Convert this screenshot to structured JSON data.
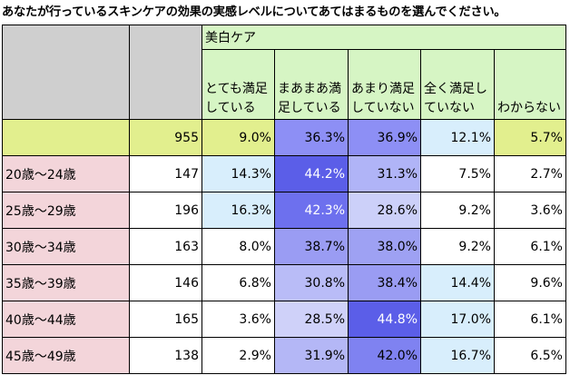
{
  "title": "あなたが行っているスキンケアの効果の実感レベルについてあてはまるものを選んでください。",
  "group_header": "美白ケア",
  "columns": [
    "とても満足している",
    "まあまあ満足している",
    "あまり満足していない",
    "全く満足していない",
    "わからない"
  ],
  "total": {
    "n": "955",
    "values": [
      "9.0%",
      "36.3%",
      "36.9%",
      "12.1%",
      "5.7%"
    ]
  },
  "rows": [
    {
      "label": "20歳～24歳",
      "n": "147",
      "values": [
        "14.3%",
        "44.2%",
        "31.3%",
        "7.5%",
        "2.7%"
      ]
    },
    {
      "label": "25歳～29歳",
      "n": "196",
      "values": [
        "16.3%",
        "42.3%",
        "28.6%",
        "9.2%",
        "3.6%"
      ]
    },
    {
      "label": "30歳～34歳",
      "n": "163",
      "values": [
        "8.0%",
        "38.7%",
        "38.0%",
        "9.2%",
        "6.1%"
      ]
    },
    {
      "label": "35歳～39歳",
      "n": "146",
      "values": [
        "6.8%",
        "30.8%",
        "38.4%",
        "14.4%",
        "9.6%"
      ]
    },
    {
      "label": "40歳～44歳",
      "n": "165",
      "values": [
        "3.6%",
        "28.5%",
        "44.8%",
        "17.0%",
        "6.1%"
      ]
    },
    {
      "label": "45歳～49歳",
      "n": "138",
      "values": [
        "2.9%",
        "31.9%",
        "42.0%",
        "16.7%",
        "6.5%"
      ]
    }
  ],
  "cell_colors": {
    "total": [
      "#e2ef8e",
      "#8d8ff5",
      "#8d8ff5",
      "#d8eefc",
      "#e2ef8e"
    ],
    "rows": [
      [
        "#d8eefc",
        "#5b5ee8",
        "#b0b4f7",
        "#ffffff",
        "#ffffff"
      ],
      [
        "#d8eefc",
        "#6d70ee",
        "#ccd0f9",
        "#ffffff",
        "#ffffff"
      ],
      [
        "#ffffff",
        "#9a9cf3",
        "#9ea1f3",
        "#ffffff",
        "#ffffff"
      ],
      [
        "#ffffff",
        "#b9bcf7",
        "#9a9cf3",
        "#d8eefc",
        "#ffffff"
      ],
      [
        "#ffffff",
        "#cfd1f9",
        "#5b5ee8",
        "#d8eefc",
        "#ffffff"
      ],
      [
        "#ffffff",
        "#b4b7f6",
        "#7f82f1",
        "#d8eefc",
        "#ffffff"
      ]
    ]
  }
}
